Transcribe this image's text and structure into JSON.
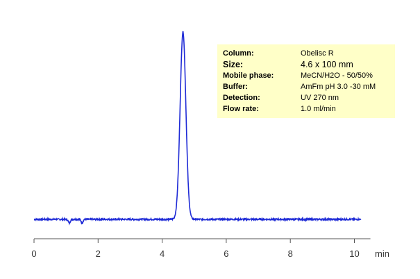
{
  "chart_data": {
    "type": "line",
    "title": "",
    "xlabel": "min",
    "ylabel": "",
    "xlim": [
      0,
      10.5
    ],
    "ylim": [
      0,
      1
    ],
    "x_ticks": [
      "0",
      "2",
      "4",
      "6",
      "8",
      "10"
    ],
    "series": [
      {
        "color": "#1f2bd6",
        "baseline": 0.0,
        "dips": [
          {
            "x": 1.1,
            "depth": 0.02
          },
          {
            "x": 1.5,
            "depth": 0.02
          }
        ],
        "peaks": [
          {
            "x": 4.65,
            "height": 1.0,
            "width": 0.09
          }
        ],
        "x_range": [
          0,
          10.2
        ]
      }
    ],
    "grid": false
  },
  "info": {
    "rows": [
      {
        "label": "Column:",
        "value": "Obelisc R",
        "big": false
      },
      {
        "label": "Size:",
        "value": "4.6 x 100  mm",
        "big": true
      },
      {
        "label": "Mobile phase:",
        "value": "MeCN/H2O  - 50/50%",
        "big": false
      },
      {
        "label": "Buffer:",
        "value": "AmFm pH 3.0 -30 mM",
        "big": false
      },
      {
        "label": "Detection:",
        "value": "UV 270 nm",
        "big": false
      },
      {
        "label": "Flow rate:",
        "value": "1.0 ml/min",
        "big": false
      }
    ]
  }
}
